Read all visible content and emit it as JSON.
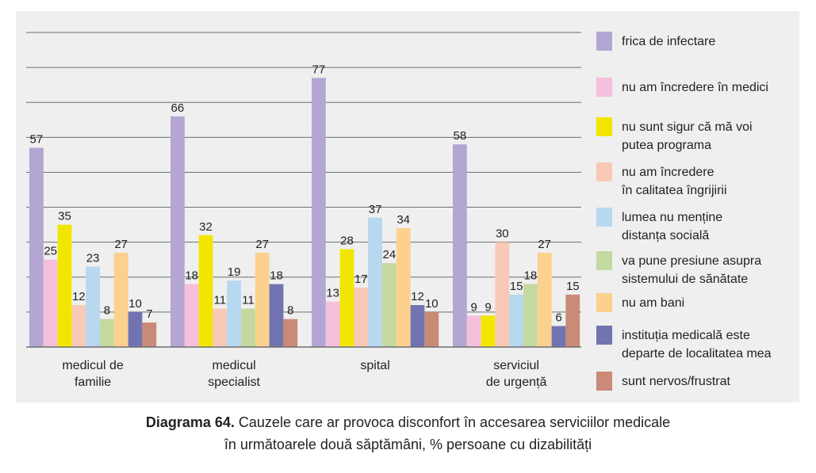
{
  "chart_data": {
    "type": "bar",
    "categories": [
      [
        "medicul de",
        "familie"
      ],
      [
        "medicul",
        "specialist"
      ],
      [
        "spital"
      ],
      [
        "serviciul",
        "de urgență"
      ]
    ],
    "ylim": [
      0,
      90
    ],
    "grid": true,
    "legend_position": "right",
    "series": [
      {
        "name": [
          "frica de infectare"
        ],
        "color": "#b3a6d3",
        "values": [
          57,
          66,
          77,
          58
        ]
      },
      {
        "name": [
          "nu am încredere în medici"
        ],
        "color": "#f5c0db",
        "values": [
          25,
          18,
          13,
          9
        ]
      },
      {
        "name": [
          "nu sunt sigur că mă voi",
          "putea programa"
        ],
        "color": "#f2e600",
        "values": [
          35,
          32,
          28,
          9
        ]
      },
      {
        "name": [
          "nu am încredere",
          "în calitatea îngrijirii"
        ],
        "color": "#f8c9b6",
        "values": [
          12,
          11,
          17,
          30
        ]
      },
      {
        "name": [
          "lumea nu menține",
          "distanța socială"
        ],
        "color": "#b7d8ee",
        "values": [
          23,
          19,
          37,
          15
        ]
      },
      {
        "name": [
          "va pune presiune asupra",
          "sistemului de sănătate"
        ],
        "color": "#c3d9a0",
        "values": [
          8,
          11,
          24,
          18
        ]
      },
      {
        "name": [
          "nu am bani"
        ],
        "color": "#fcd08e",
        "values": [
          27,
          27,
          34,
          27
        ]
      },
      {
        "name": [
          "instituția medicală este",
          "departe de localitatea mea"
        ],
        "color": "#7174b0",
        "values": [
          10,
          18,
          12,
          6
        ]
      },
      {
        "name": [
          "sunt nervos/frustrat"
        ],
        "color": "#c98a78",
        "values": [
          7,
          8,
          10,
          15
        ]
      }
    ]
  },
  "caption": {
    "bold": "Diagrama 64.",
    "line1": " Cauzele care ar provoca disconfort în accesarea serviciilor medicale",
    "line2": "în următoarele două săptămâni, % persoane cu dizabilități"
  }
}
